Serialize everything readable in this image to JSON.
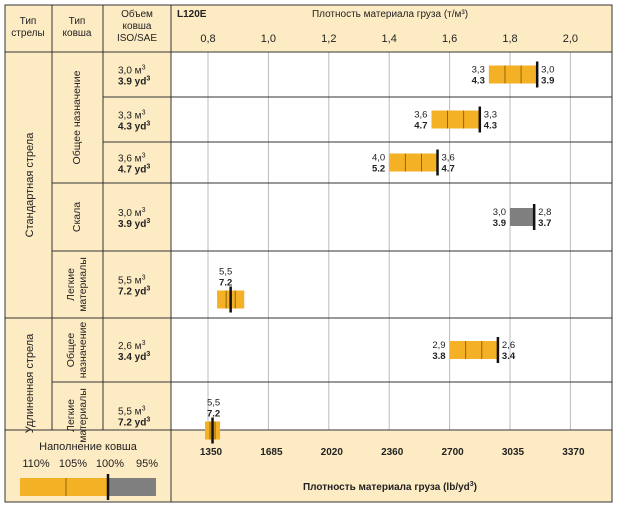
{
  "chart_data": {
    "type": "bar",
    "model": "L120E",
    "title": "Плотность материала груза (т/м³)",
    "bottom_title": "Плотность материала груза (lb/yd³)",
    "headers": {
      "boom_type": [
        "Тип",
        "стрелы"
      ],
      "bucket_type": [
        "Тип",
        "ковша"
      ],
      "volume": [
        "Объем",
        "ковша",
        "ISO/SAE"
      ]
    },
    "metric_ticks": [
      "0,8",
      "1,0",
      "1,2",
      "1,4",
      "1,6",
      "1,8",
      "2,0"
    ],
    "imperial_ticks": [
      "1350",
      "1685",
      "2020",
      "2360",
      "2700",
      "3035",
      "3370"
    ],
    "metric_range": [
      0.8,
      2.0
    ],
    "booms": [
      {
        "name": "Стандартная стрела",
        "groups": [
          {
            "name": [
              "Общее назначение"
            ],
            "rows": [
              {
                "vol_m3": "3,0 м",
                "vol_yd3": "3.9 yd",
                "from": 1.73,
                "to": 1.89,
                "fill": "yellow",
                "low_m": "3,3",
                "low_i": "4.3",
                "high_m": "3,0",
                "high_i": "3.9"
              },
              {
                "vol_m3": "3,3 м",
                "vol_yd3": "4.3 yd",
                "from": 1.54,
                "to": 1.7,
                "fill": "yellow",
                "low_m": "3,6",
                "low_i": "4.7",
                "high_m": "3,3",
                "high_i": "4.3"
              },
              {
                "vol_m3": "3,6 м",
                "vol_yd3": "4.7 yd",
                "from": 1.4,
                "to": 1.56,
                "fill": "yellow",
                "low_m": "4,0",
                "low_i": "5.2",
                "high_m": "3,6",
                "high_i": "4.7"
              }
            ]
          },
          {
            "name": [
              "Скала"
            ],
            "rows": [
              {
                "vol_m3": "3,0 м",
                "vol_yd3": "3.9 yd",
                "from": 1.8,
                "to": 1.88,
                "fill": "grey",
                "low_m": "3,0",
                "low_i": "3.9",
                "high_m": "2,8",
                "high_i": "3.7"
              }
            ]
          },
          {
            "name": [
              "Легкие",
              "материалы"
            ],
            "rows": [
              {
                "vol_m3": "5,5 м",
                "vol_yd3": "7.2 yd",
                "from": 0.83,
                "to": 0.92,
                "fill": "yellow",
                "low_m": "5,5",
                "low_i": "7.2",
                "high_m": "",
                "high_i": ""
              }
            ]
          }
        ]
      },
      {
        "name": "Удлиненная стрела",
        "groups": [
          {
            "name": [
              "Общее",
              "назначение"
            ],
            "rows": [
              {
                "vol_m3": "2,6 м",
                "vol_yd3": "3.4 yd",
                "from": 1.6,
                "to": 1.76,
                "fill": "yellow",
                "low_m": "2,9",
                "low_i": "3.8",
                "high_m": "2,6",
                "high_i": "3.4"
              }
            ]
          },
          {
            "name": [
              "Легкие",
              "материалы"
            ],
            "rows": [
              {
                "vol_m3": "5,5 м",
                "vol_yd3": "7.2 yd",
                "from": 0.79,
                "to": 0.84,
                "fill": "yellow",
                "low_m": "5,5",
                "low_i": "7.2",
                "high_m": "",
                "high_i": ""
              }
            ]
          }
        ]
      }
    ],
    "legend": {
      "title": "Наполнение ковша",
      "labels": [
        "110%",
        "105%",
        "100%",
        "95%"
      ]
    },
    "colors": {
      "panel": "#fdebc4",
      "bar": "#f5b126",
      "grey": "#7f7f7f",
      "border": "#333333",
      "grid": "#bbbbbb"
    }
  }
}
